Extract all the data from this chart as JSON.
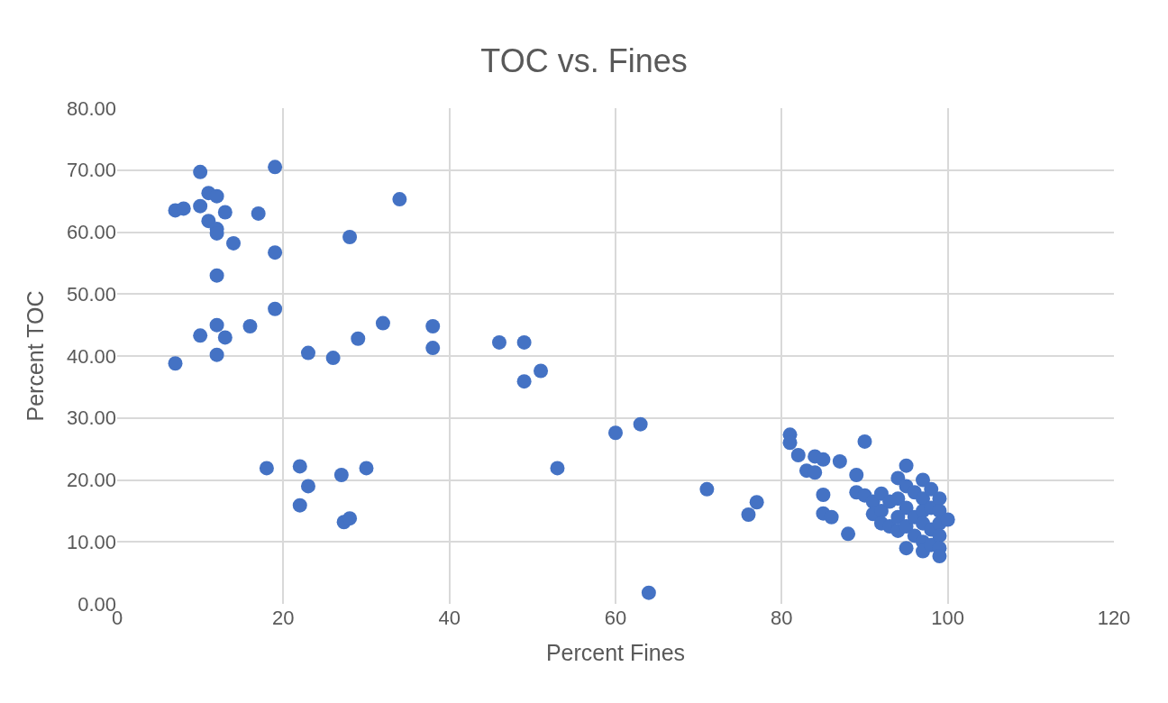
{
  "chart_data": {
    "type": "scatter",
    "title": "TOC vs. Fines",
    "xlabel": "Percent Fines",
    "ylabel": "Percent TOC",
    "x": [
      7,
      8,
      10,
      10,
      11,
      12,
      11,
      12,
      12,
      13,
      14,
      17,
      19,
      19,
      12,
      34,
      28,
      7,
      10,
      12,
      12,
      13,
      16,
      19,
      23,
      26,
      29,
      32,
      38,
      38,
      46,
      49,
      49,
      51,
      60,
      63,
      53,
      18,
      22,
      22,
      23,
      27,
      30,
      27.3,
      28,
      64,
      71,
      76,
      77,
      81,
      81,
      82,
      83,
      84,
      84,
      85,
      85,
      85,
      86,
      87,
      88,
      89,
      89,
      90,
      90,
      91,
      91,
      92,
      92,
      92,
      93,
      93,
      94,
      94,
      94,
      94,
      95,
      95,
      95,
      95,
      95,
      96,
      96,
      96,
      97,
      97,
      97,
      97,
      97,
      97,
      98,
      98,
      98,
      98,
      99,
      99,
      99,
      99,
      99,
      99,
      100
    ],
    "series": [
      {
        "color": "#4472c4",
        "values": [
          63.5,
          63.8,
          69.7,
          64.2,
          66.3,
          65.8,
          61.8,
          60.5,
          59.8,
          63.2,
          58.2,
          63,
          70.5,
          56.7,
          53,
          65.3,
          59.2,
          38.8,
          43.3,
          45,
          40.2,
          43,
          44.8,
          47.6,
          40.5,
          39.7,
          42.8,
          45.3,
          44.8,
          41.3,
          42.2,
          42.2,
          35.9,
          37.6,
          27.6,
          29,
          21.9,
          21.9,
          22.2,
          15.9,
          19,
          20.8,
          21.9,
          13.2,
          13.8,
          1.8,
          18.5,
          14.4,
          16.4,
          27.3,
          26,
          24,
          21.5,
          23.8,
          21.2,
          23.3,
          17.6,
          14.6,
          14,
          23,
          11.3,
          20.8,
          18,
          26.2,
          17.5,
          16.5,
          14.5,
          17.8,
          15,
          13,
          16.5,
          12.5,
          20.3,
          17,
          14,
          11.8,
          22.3,
          19,
          15.5,
          12.5,
          9,
          18,
          14,
          11,
          20,
          17,
          15,
          13,
          10,
          8.5,
          18.5,
          15.5,
          12,
          9.5,
          17,
          15,
          13,
          11,
          9,
          7.7,
          13.6
        ]
      }
    ],
    "xlim": [
      0,
      120
    ],
    "xticks": [
      0,
      20,
      40,
      60,
      80,
      100,
      120
    ],
    "ylim": [
      0,
      80
    ],
    "yticks": [
      {
        "value": 0,
        "label": "0.00"
      },
      {
        "value": 10,
        "label": "10.00"
      },
      {
        "value": 20,
        "label": "20.00"
      },
      {
        "value": 30,
        "label": "30.00"
      },
      {
        "value": 40,
        "label": "40.00"
      },
      {
        "value": 50,
        "label": "50.00"
      },
      {
        "value": 60,
        "label": "60.00"
      },
      {
        "value": 70,
        "label": "70.00"
      },
      {
        "value": 80,
        "label": "80.00"
      }
    ],
    "grid": true,
    "marker": "circle"
  }
}
